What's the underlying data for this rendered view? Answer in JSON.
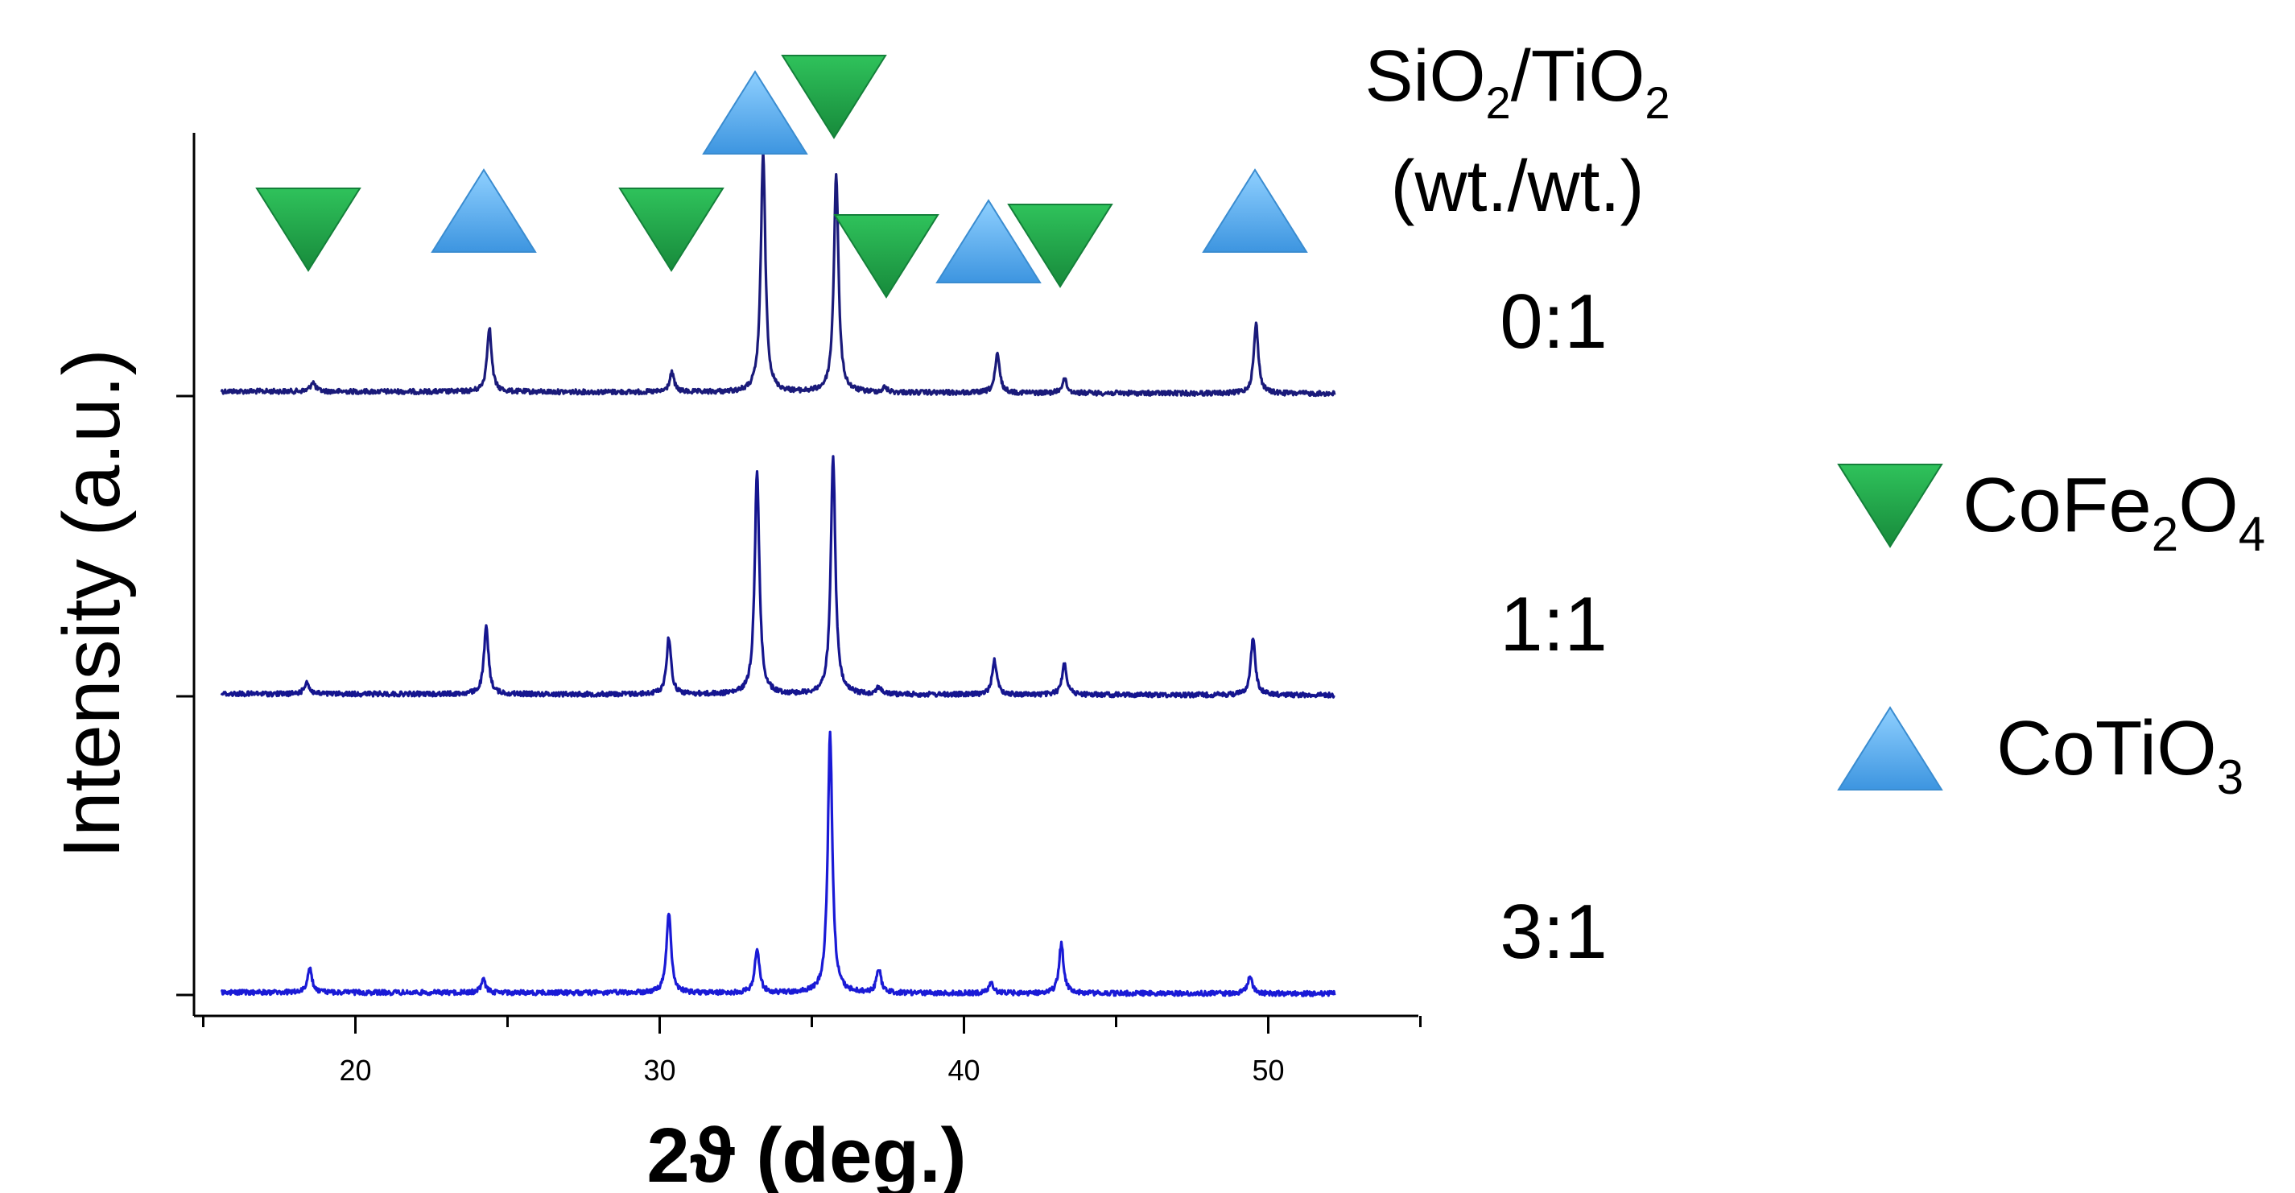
{
  "chart_data": {
    "type": "line",
    "title": "",
    "xlabel": "2ϑ (deg.)",
    "ylabel": "Intensity (a.u.)",
    "xlim": [
      15.0,
      55.0
    ],
    "x_ticks": [
      20,
      30,
      40,
      50
    ],
    "x_tick_labels": [
      "20",
      "30",
      "40",
      "50"
    ],
    "y_ticks_labeled": false,
    "legend_header": {
      "line1": {
        "base1": "SiO",
        "sub1": "2",
        "mid": "/TiO",
        "sub2": "2"
      },
      "line2": "(wt./wt.)"
    },
    "series": [
      {
        "name": "0:1",
        "color": "#1a1a7a",
        "baseline": 0.02,
        "peaks": [
          {
            "x": 18.6,
            "h": 0.04
          },
          {
            "x": 24.4,
            "h": 0.27
          },
          {
            "x": 30.4,
            "h": 0.08
          },
          {
            "x": 33.4,
            "h": 1.0
          },
          {
            "x": 35.8,
            "h": 0.91
          },
          {
            "x": 37.4,
            "h": 0.02
          },
          {
            "x": 41.1,
            "h": 0.16
          },
          {
            "x": 43.3,
            "h": 0.06
          },
          {
            "x": 49.6,
            "h": 0.29
          }
        ]
      },
      {
        "name": "1:1",
        "color": "#15158f",
        "baseline": 0.01,
        "peaks": [
          {
            "x": 18.4,
            "h": 0.05
          },
          {
            "x": 24.3,
            "h": 0.27
          },
          {
            "x": 30.3,
            "h": 0.23
          },
          {
            "x": 33.2,
            "h": 0.91
          },
          {
            "x": 35.7,
            "h": 0.96
          },
          {
            "x": 37.2,
            "h": 0.03
          },
          {
            "x": 41.0,
            "h": 0.14
          },
          {
            "x": 43.3,
            "h": 0.13
          },
          {
            "x": 49.5,
            "h": 0.23
          }
        ]
      },
      {
        "name": "3:1",
        "color": "#1a1ad6",
        "baseline": 0.01,
        "peaks": [
          {
            "x": 18.5,
            "h": 0.09
          },
          {
            "x": 24.2,
            "h": 0.05
          },
          {
            "x": 30.3,
            "h": 0.31
          },
          {
            "x": 33.2,
            "h": 0.17
          },
          {
            "x": 35.6,
            "h": 1.0
          },
          {
            "x": 37.2,
            "h": 0.09
          },
          {
            "x": 40.9,
            "h": 0.04
          },
          {
            "x": 43.2,
            "h": 0.19
          },
          {
            "x": 49.4,
            "h": 0.07
          }
        ]
      }
    ],
    "phase_markers": [
      {
        "phase": "CoFe2O4",
        "shape": "triangle-down",
        "x": 18.5
      },
      {
        "phase": "CoTiO3",
        "shape": "triangle-up",
        "x": 24.3
      },
      {
        "phase": "CoFe2O4",
        "shape": "triangle-down",
        "x": 30.3
      },
      {
        "phase": "CoTiO3",
        "shape": "triangle-up",
        "x": 33.3
      },
      {
        "phase": "CoFe2O4",
        "shape": "triangle-down",
        "x": 35.7
      },
      {
        "phase": "CoFe2O4",
        "shape": "triangle-down",
        "x": 37.3
      },
      {
        "phase": "CoTiO3",
        "shape": "triangle-up",
        "x": 41.0
      },
      {
        "phase": "CoFe2O4",
        "shape": "triangle-down",
        "x": 43.3
      },
      {
        "phase": "CoTiO3",
        "shape": "triangle-up",
        "x": 49.5
      }
    ],
    "legend": [
      {
        "symbol": "triangle-down",
        "color": "#1e9e46",
        "label": {
          "a": "CoFe",
          "s1": "2",
          "b": "O",
          "s2": "4"
        }
      },
      {
        "symbol": "triangle-up",
        "color": "#4aa3e8",
        "label": {
          "a": "CoTiO",
          "s1": "3",
          "b": "",
          "s2": ""
        }
      }
    ],
    "legend_placement": "right",
    "grid": false
  }
}
